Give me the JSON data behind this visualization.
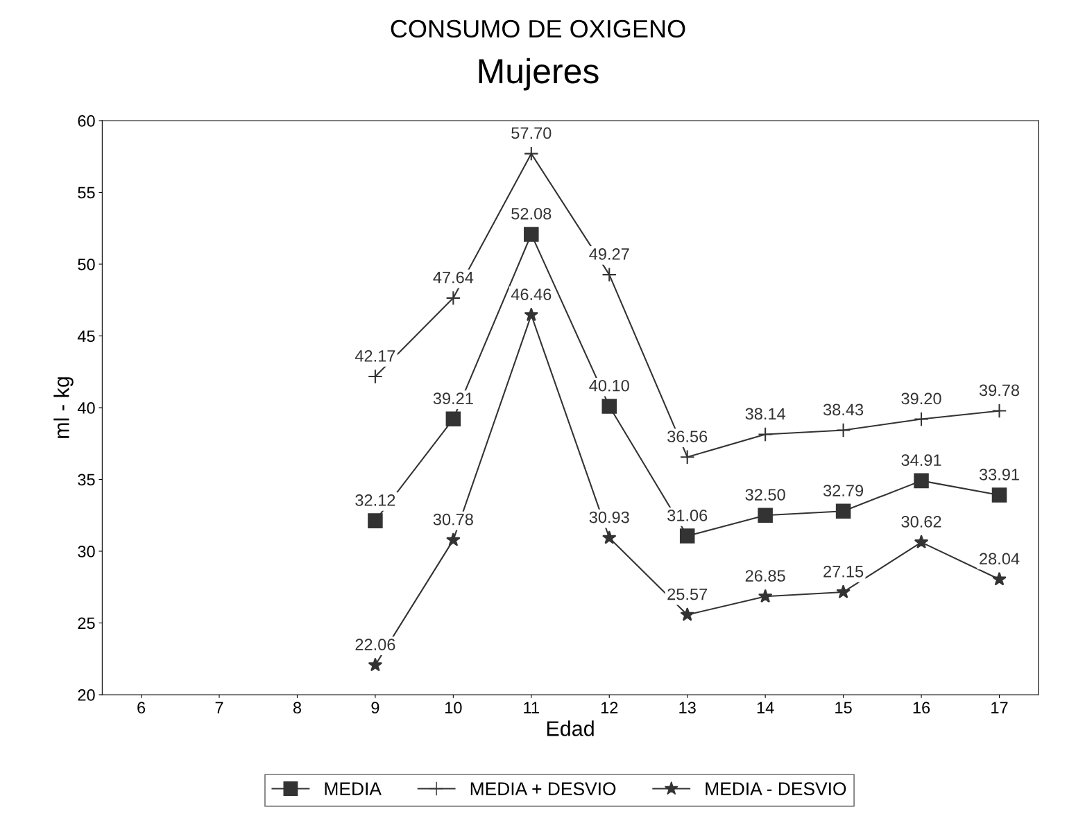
{
  "chart_data": {
    "type": "line",
    "title": "CONSUMO DE OXIGENO",
    "subtitle": "Mujeres",
    "xlabel": "Edad",
    "ylabel": "ml - kg",
    "categories": [
      "6",
      "7",
      "8",
      "9",
      "10",
      "11",
      "12",
      "13",
      "14",
      "15",
      "16",
      "17"
    ],
    "series": [
      {
        "name": "MEDIA",
        "color": "#333333",
        "marker": "square",
        "values": [
          null,
          null,
          null,
          32.12,
          39.21,
          52.08,
          40.1,
          31.06,
          32.5,
          32.79,
          34.91,
          33.91
        ],
        "value_labels": [
          null,
          null,
          null,
          "32.12",
          "39.21",
          "52.08",
          "40.10",
          "31.06",
          "32.50",
          "32.79",
          "34.91",
          "33.91"
        ]
      },
      {
        "name": "MEDIA + DESVIO",
        "color": "#333333",
        "marker": "cross",
        "values": [
          null,
          null,
          null,
          42.17,
          47.64,
          57.7,
          49.27,
          36.56,
          38.14,
          38.43,
          39.2,
          39.78
        ],
        "value_labels": [
          null,
          null,
          null,
          "42.17",
          "47.64",
          "57.70",
          "49.27",
          "36.56",
          "38.14",
          "38.43",
          "39.20",
          "39.78"
        ]
      },
      {
        "name": "MEDIA - DESVIO",
        "color": "#333333",
        "marker": "star",
        "values": [
          null,
          null,
          null,
          22.06,
          30.78,
          46.46,
          30.93,
          25.57,
          26.85,
          27.15,
          30.62,
          28.04
        ],
        "value_labels": [
          null,
          null,
          null,
          "22.06",
          "30.78",
          "46.46",
          "30.93",
          "25.57",
          "26.85",
          "27.15",
          "30.62",
          "28.04"
        ]
      }
    ],
    "ylim": [
      20,
      60
    ],
    "yticks": [
      20,
      25,
      30,
      35,
      40,
      45,
      50,
      55,
      60
    ],
    "grid": false,
    "legend": "bottom",
    "line_style": "solid"
  }
}
